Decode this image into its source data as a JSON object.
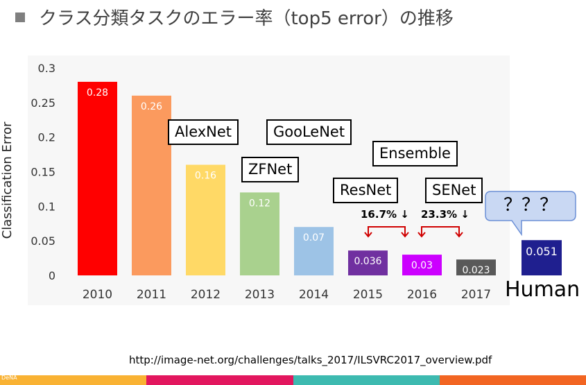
{
  "slide": {
    "title": "クラス分類タスクのエラー率（top5 error）の推移",
    "source": "http://image-net.org/challenges/talks_2017/ILSVRC2017_overview.pdf",
    "logo_text": "DeNA",
    "footer_colors": [
      "#f9b233",
      "#e2165e",
      "#3dbab0",
      "#f26522"
    ]
  },
  "annotations": {
    "alexnet": "AlexNet",
    "googlenet": "GooLeNet",
    "zfnet": "ZFNet",
    "ensemble": "Ensemble",
    "resnet": "ResNet",
    "senet": "SENet",
    "improvement_2016": "16.7%",
    "improvement_2017": "23.3%",
    "arrow_down": "↓",
    "question": "？？？",
    "human": "Human"
  },
  "chart_data": {
    "type": "bar",
    "title": "",
    "xlabel": "",
    "ylabel": "Classification Error",
    "ylim": [
      0,
      0.3
    ],
    "yticks": [
      "0",
      "0.05",
      "0.1",
      "0.15",
      "0.2",
      "0.25",
      "0.3"
    ],
    "categories": [
      "2010",
      "2011",
      "2012",
      "2013",
      "2014",
      "2015",
      "2016",
      "2017"
    ],
    "values": [
      0.28,
      0.26,
      0.16,
      0.12,
      0.07,
      0.036,
      0.03,
      0.023
    ],
    "value_labels": [
      "0.28",
      "0.26",
      "0.16",
      "0.12",
      "0.07",
      "0.036",
      "0.03",
      "0.023"
    ],
    "colors": [
      "#ff0000",
      "#fb9a5e",
      "#ffd966",
      "#a9d18e",
      "#9dc3e6",
      "#7030a0",
      "#cc00ff",
      "#595959"
    ],
    "human": {
      "label": "Human",
      "value": 0.051,
      "value_label": "0.051",
      "color": "#1f1f8f"
    }
  }
}
